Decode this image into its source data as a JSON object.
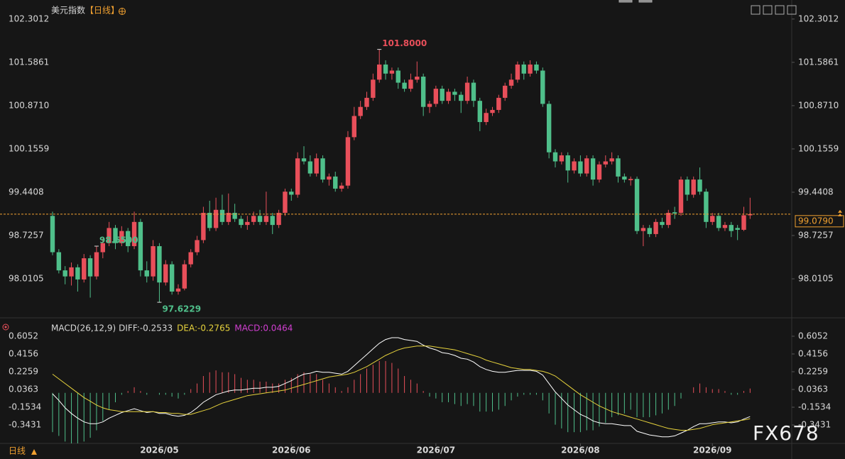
{
  "title": "美元指数",
  "period": "【日线】",
  "footer": "日线",
  "watermark": "FX678",
  "chart_data": [
    {
      "type": "candlestick",
      "up_color": "#e84f5a",
      "down_color": "#4fbf8a",
      "ylim": [
        97.46,
        102.44
      ],
      "yticks": [
        102.3012,
        101.5861,
        {
          "value": 100.871,
          "label": "100.8710"
        },
        100.1559,
        99.4408,
        98.7257,
        98.0105
      ],
      "last": {
        "value": 99.079,
        "label": "99.0790"
      },
      "last_color": "#f0a030",
      "annotations": [
        {
          "value": 101.8,
          "label": "101.8000",
          "color": "#e84f5a"
        },
        {
          "value": 97.6229,
          "label": "97.6229",
          "color": "#4fbf8a"
        },
        {
          "value": 98.55,
          "label": "98.5500",
          "color": "#4fbf8a"
        }
      ],
      "categories": [
        null,
        null,
        null,
        null,
        null,
        null,
        null,
        null,
        null,
        null,
        null,
        null,
        null,
        null,
        null,
        null,
        null,
        "2026/05",
        null,
        null,
        null,
        null,
        null,
        null,
        null,
        null,
        null,
        null,
        null,
        null,
        null,
        null,
        null,
        null,
        null,
        null,
        null,
        null,
        "2026/06",
        null,
        null,
        null,
        null,
        null,
        null,
        null,
        null,
        null,
        null,
        null,
        null,
        null,
        null,
        null,
        null,
        null,
        null,
        null,
        null,
        null,
        null,
        "2026/07",
        null,
        null,
        null,
        null,
        null,
        null,
        null,
        null,
        null,
        null,
        null,
        null,
        null,
        null,
        null,
        null,
        null,
        null,
        null,
        null,
        null,
        null,
        "2026/08",
        null,
        null,
        null,
        null,
        null,
        null,
        null,
        null,
        null,
        null,
        null,
        null,
        null,
        null,
        null,
        null,
        null,
        null,
        null,
        null,
        "2026/09",
        null,
        null,
        null,
        null,
        null,
        null
      ],
      "candles": [
        [
          99.05,
          99.12,
          98.4,
          98.45
        ],
        [
          98.45,
          98.5,
          98.1,
          98.15
        ],
        [
          98.15,
          98.22,
          97.92,
          98.05
        ],
        [
          98.05,
          98.28,
          97.9,
          98.2
        ],
        [
          98.2,
          98.25,
          97.8,
          98.0
        ],
        [
          98.0,
          98.42,
          97.95,
          98.35
        ],
        [
          98.35,
          98.4,
          97.7,
          98.05
        ],
        [
          98.05,
          98.55,
          98.0,
          98.45
        ],
        [
          98.45,
          98.68,
          98.35,
          98.6
        ],
        [
          98.6,
          98.95,
          98.55,
          98.85
        ],
        [
          98.85,
          98.9,
          98.5,
          98.6
        ],
        [
          98.6,
          98.88,
          98.55,
          98.8
        ],
        [
          98.8,
          98.85,
          98.45,
          98.55
        ],
        [
          98.55,
          99.12,
          98.5,
          98.95
        ],
        [
          98.95,
          99.0,
          98.05,
          98.15
        ],
        [
          98.15,
          98.3,
          97.95,
          98.05
        ],
        [
          98.05,
          98.65,
          97.98,
          98.55
        ],
        [
          98.55,
          98.6,
          97.6229,
          97.95
        ],
        [
          97.95,
          98.32,
          97.9,
          98.25
        ],
        [
          98.25,
          98.3,
          97.75,
          97.8
        ],
        [
          97.8,
          97.92,
          97.75,
          97.85
        ],
        [
          97.85,
          98.32,
          97.82,
          98.25
        ],
        [
          98.25,
          98.5,
          98.2,
          98.45
        ],
        [
          98.45,
          98.72,
          98.4,
          98.65
        ],
        [
          98.65,
          99.2,
          98.6,
          99.1
        ],
        [
          99.1,
          99.3,
          98.8,
          98.85
        ],
        [
          98.85,
          99.35,
          98.8,
          99.15
        ],
        [
          99.15,
          99.4,
          98.9,
          98.95
        ],
        [
          98.95,
          99.42,
          98.9,
          99.1
        ],
        [
          99.1,
          99.25,
          98.95,
          99.0
        ],
        [
          99.0,
          99.05,
          98.85,
          98.9
        ],
        [
          98.9,
          99.05,
          98.82,
          98.95
        ],
        [
          98.95,
          99.12,
          98.9,
          99.05
        ],
        [
          99.05,
          99.15,
          98.9,
          98.95
        ],
        [
          98.95,
          99.45,
          98.9,
          99.05
        ],
        [
          99.05,
          99.1,
          98.75,
          98.9
        ],
        [
          98.9,
          99.15,
          98.85,
          99.1
        ],
        [
          99.1,
          99.5,
          99.05,
          99.45
        ],
        [
          99.45,
          99.5,
          99.3,
          99.4
        ],
        [
          99.4,
          100.1,
          99.35,
          100.0
        ],
        [
          100.0,
          100.2,
          99.9,
          99.95
        ],
        [
          99.95,
          100.05,
          99.7,
          99.75
        ],
        [
          99.75,
          100.08,
          99.7,
          100.0
        ],
        [
          100.0,
          100.05,
          99.6,
          99.65
        ],
        [
          99.65,
          99.75,
          99.55,
          99.7
        ],
        [
          99.7,
          99.78,
          99.45,
          99.5
        ],
        [
          99.5,
          99.6,
          99.45,
          99.55
        ],
        [
          99.55,
          100.45,
          99.5,
          100.35
        ],
        [
          100.35,
          100.85,
          100.3,
          100.7
        ],
        [
          100.7,
          100.95,
          100.65,
          100.85
        ],
        [
          100.85,
          101.1,
          100.8,
          101.0
        ],
        [
          101.0,
          101.4,
          100.95,
          101.3
        ],
        [
          101.3,
          101.8,
          101.25,
          101.55
        ],
        [
          101.55,
          101.62,
          101.3,
          101.4
        ],
        [
          101.4,
          101.5,
          101.3,
          101.45
        ],
        [
          101.45,
          101.5,
          101.15,
          101.25
        ],
        [
          101.25,
          101.3,
          101.1,
          101.15
        ],
        [
          101.15,
          101.4,
          101.1,
          101.3
        ],
        [
          101.3,
          101.6,
          101.25,
          101.35
        ],
        [
          101.35,
          101.4,
          100.7,
          100.85
        ],
        [
          100.85,
          100.95,
          100.75,
          100.9
        ],
        [
          100.9,
          101.2,
          100.85,
          101.15
        ],
        [
          101.15,
          101.2,
          100.9,
          100.95
        ],
        [
          100.95,
          101.15,
          100.9,
          101.1
        ],
        [
          101.1,
          101.15,
          100.95,
          101.05
        ],
        [
          101.05,
          101.1,
          100.75,
          100.95
        ],
        [
          100.95,
          101.35,
          100.9,
          101.25
        ],
        [
          101.25,
          101.3,
          100.85,
          100.95
        ],
        [
          100.95,
          101.0,
          100.45,
          100.6
        ],
        [
          100.6,
          100.82,
          100.55,
          100.75
        ],
        [
          100.75,
          100.85,
          100.7,
          100.8
        ],
        [
          100.8,
          101.05,
          100.75,
          101.0
        ],
        [
          101.0,
          101.25,
          100.95,
          101.2
        ],
        [
          101.2,
          101.4,
          101.15,
          101.3
        ],
        [
          101.3,
          101.6,
          101.25,
          101.55
        ],
        [
          101.55,
          101.6,
          101.3,
          101.4
        ],
        [
          101.4,
          101.62,
          101.35,
          101.55
        ],
        [
          101.55,
          101.6,
          101.4,
          101.45
        ],
        [
          101.45,
          101.5,
          100.85,
          100.9
        ],
        [
          100.9,
          100.95,
          100.0,
          100.1
        ],
        [
          100.1,
          100.15,
          99.85,
          99.95
        ],
        [
          99.95,
          100.1,
          99.9,
          100.05
        ],
        [
          100.05,
          100.1,
          99.6,
          99.8
        ],
        [
          99.8,
          100.0,
          99.75,
          99.95
        ],
        [
          99.95,
          100.05,
          99.7,
          99.75
        ],
        [
          99.75,
          100.05,
          99.7,
          100.0
        ],
        [
          100.0,
          100.05,
          99.55,
          99.65
        ],
        [
          99.65,
          99.95,
          99.6,
          99.9
        ],
        [
          99.9,
          100.05,
          99.85,
          99.95
        ],
        [
          99.95,
          100.1,
          99.9,
          100.0
        ],
        [
          100.0,
          100.05,
          99.6,
          99.7
        ],
        [
          99.7,
          99.75,
          99.6,
          99.65
        ],
        [
          99.64,
          99.7,
          99.55,
          99.66
        ],
        [
          99.66,
          99.7,
          98.75,
          98.8
        ],
        [
          98.8,
          98.9,
          98.55,
          98.85
        ],
        [
          98.85,
          98.9,
          98.7,
          98.75
        ],
        [
          98.75,
          99.0,
          98.7,
          98.95
        ],
        [
          98.95,
          99.02,
          98.85,
          98.9
        ],
        [
          98.9,
          99.15,
          98.85,
          99.1
        ],
        [
          99.11,
          99.2,
          99.0,
          99.09
        ],
        [
          99.1,
          99.7,
          99.05,
          99.65
        ],
        [
          99.65,
          99.7,
          99.3,
          99.4
        ],
        [
          99.4,
          99.7,
          99.35,
          99.65
        ],
        [
          99.65,
          99.85,
          99.4,
          99.45
        ],
        [
          99.45,
          99.5,
          98.85,
          98.95
        ],
        [
          98.95,
          99.1,
          98.9,
          99.05
        ],
        [
          99.05,
          99.1,
          98.8,
          98.85
        ],
        [
          98.85,
          98.95,
          98.8,
          98.9
        ],
        [
          98.9,
          98.95,
          98.7,
          98.8
        ],
        [
          98.85,
          98.9,
          98.65,
          98.82
        ],
        [
          98.82,
          99.2,
          98.8,
          99.06
        ],
        [
          99.06,
          99.35,
          99.0,
          99.079
        ]
      ]
    },
    {
      "type": "macd",
      "indicator": "MACD(26,12,9)",
      "up_color": "#e84f5a",
      "down_color": "#4fbf8a",
      "ylim": [
        -0.54,
        0.711
      ],
      "yticks": [
        0.6052,
        0.4156,
        0.2259,
        0.0363,
        -0.1534,
        -0.3431
      ],
      "series": [
        {
          "name": "DIFF:-0.2533",
          "color": "#ffffff",
          "kind": "line",
          "values": [
            -0.01,
            -0.08,
            -0.16,
            -0.22,
            -0.27,
            -0.31,
            -0.33,
            -0.33,
            -0.31,
            -0.27,
            -0.24,
            -0.21,
            -0.19,
            -0.17,
            -0.19,
            -0.21,
            -0.2,
            -0.22,
            -0.22,
            -0.24,
            -0.25,
            -0.24,
            -0.21,
            -0.16,
            -0.1,
            -0.06,
            -0.02,
            0.0,
            0.02,
            0.03,
            0.03,
            0.04,
            0.05,
            0.05,
            0.06,
            0.06,
            0.07,
            0.1,
            0.13,
            0.17,
            0.2,
            0.21,
            0.23,
            0.22,
            0.22,
            0.21,
            0.2,
            0.23,
            0.29,
            0.35,
            0.41,
            0.47,
            0.53,
            0.57,
            0.59,
            0.59,
            0.57,
            0.56,
            0.55,
            0.51,
            0.48,
            0.46,
            0.43,
            0.42,
            0.4,
            0.37,
            0.36,
            0.33,
            0.28,
            0.25,
            0.23,
            0.22,
            0.22,
            0.23,
            0.24,
            0.24,
            0.24,
            0.23,
            0.19,
            0.1,
            0.01,
            -0.06,
            -0.13,
            -0.18,
            -0.23,
            -0.26,
            -0.3,
            -0.32,
            -0.33,
            -0.33,
            -0.34,
            -0.35,
            -0.35,
            -0.41,
            -0.43,
            -0.45,
            -0.46,
            -0.47,
            -0.47,
            -0.46,
            -0.43,
            -0.4,
            -0.36,
            -0.33,
            -0.33,
            -0.32,
            -0.31,
            -0.31,
            -0.32,
            -0.31,
            -0.28,
            -0.2533
          ]
        },
        {
          "name": "DEA:-0.2765",
          "color": "#e6d23c",
          "kind": "line",
          "values": [
            0.2,
            0.15,
            0.1,
            0.05,
            0.0,
            -0.05,
            -0.09,
            -0.13,
            -0.16,
            -0.18,
            -0.19,
            -0.2,
            -0.2,
            -0.2,
            -0.2,
            -0.2,
            -0.2,
            -0.21,
            -0.21,
            -0.22,
            -0.22,
            -0.23,
            -0.23,
            -0.21,
            -0.19,
            -0.17,
            -0.14,
            -0.11,
            -0.09,
            -0.07,
            -0.05,
            -0.03,
            -0.02,
            -0.01,
            0.0,
            0.01,
            0.02,
            0.03,
            0.05,
            0.07,
            0.09,
            0.11,
            0.13,
            0.15,
            0.17,
            0.18,
            0.19,
            0.2,
            0.22,
            0.25,
            0.28,
            0.32,
            0.36,
            0.4,
            0.43,
            0.46,
            0.48,
            0.49,
            0.5,
            0.5,
            0.5,
            0.49,
            0.48,
            0.47,
            0.46,
            0.44,
            0.42,
            0.4,
            0.38,
            0.35,
            0.33,
            0.31,
            0.29,
            0.27,
            0.26,
            0.25,
            0.25,
            0.24,
            0.23,
            0.21,
            0.18,
            0.13,
            0.08,
            0.03,
            -0.02,
            -0.06,
            -0.1,
            -0.14,
            -0.17,
            -0.2,
            -0.22,
            -0.24,
            -0.26,
            -0.28,
            -0.3,
            -0.32,
            -0.34,
            -0.36,
            -0.38,
            -0.39,
            -0.4,
            -0.4,
            -0.39,
            -0.38,
            -0.36,
            -0.34,
            -0.33,
            -0.32,
            -0.31,
            -0.3,
            -0.29,
            -0.2765
          ]
        },
        {
          "name": "MACD:0.0464",
          "color": "#d13fd1",
          "kind": "histogram",
          "values": [
            -0.42,
            -0.46,
            -0.52,
            -0.54,
            -0.54,
            -0.52,
            -0.48,
            -0.4,
            -0.3,
            -0.18,
            -0.1,
            -0.02,
            0.02,
            0.06,
            0.02,
            -0.02,
            0.0,
            -0.02,
            -0.02,
            -0.04,
            -0.06,
            -0.02,
            0.04,
            0.1,
            0.18,
            0.22,
            0.24,
            0.22,
            0.22,
            0.2,
            0.16,
            0.14,
            0.14,
            0.12,
            0.12,
            0.1,
            0.1,
            0.14,
            0.16,
            0.2,
            0.22,
            0.2,
            0.2,
            0.14,
            0.1,
            0.06,
            0.02,
            0.06,
            0.14,
            0.2,
            0.26,
            0.3,
            0.34,
            0.34,
            0.32,
            0.26,
            0.18,
            0.14,
            0.1,
            0.02,
            -0.04,
            -0.06,
            -0.1,
            -0.1,
            -0.12,
            -0.14,
            -0.12,
            -0.14,
            -0.2,
            -0.2,
            -0.2,
            -0.18,
            -0.14,
            -0.08,
            -0.04,
            -0.02,
            -0.02,
            -0.02,
            -0.08,
            -0.22,
            -0.34,
            -0.38,
            -0.42,
            -0.42,
            -0.42,
            -0.4,
            -0.4,
            -0.36,
            -0.32,
            -0.26,
            -0.24,
            -0.22,
            -0.18,
            -0.26,
            -0.26,
            -0.26,
            -0.24,
            -0.22,
            -0.18,
            -0.14,
            -0.06,
            0.0,
            0.06,
            0.1,
            0.06,
            0.04,
            0.04,
            0.02,
            -0.02,
            -0.02,
            0.02,
            0.0464
          ]
        }
      ]
    }
  ]
}
